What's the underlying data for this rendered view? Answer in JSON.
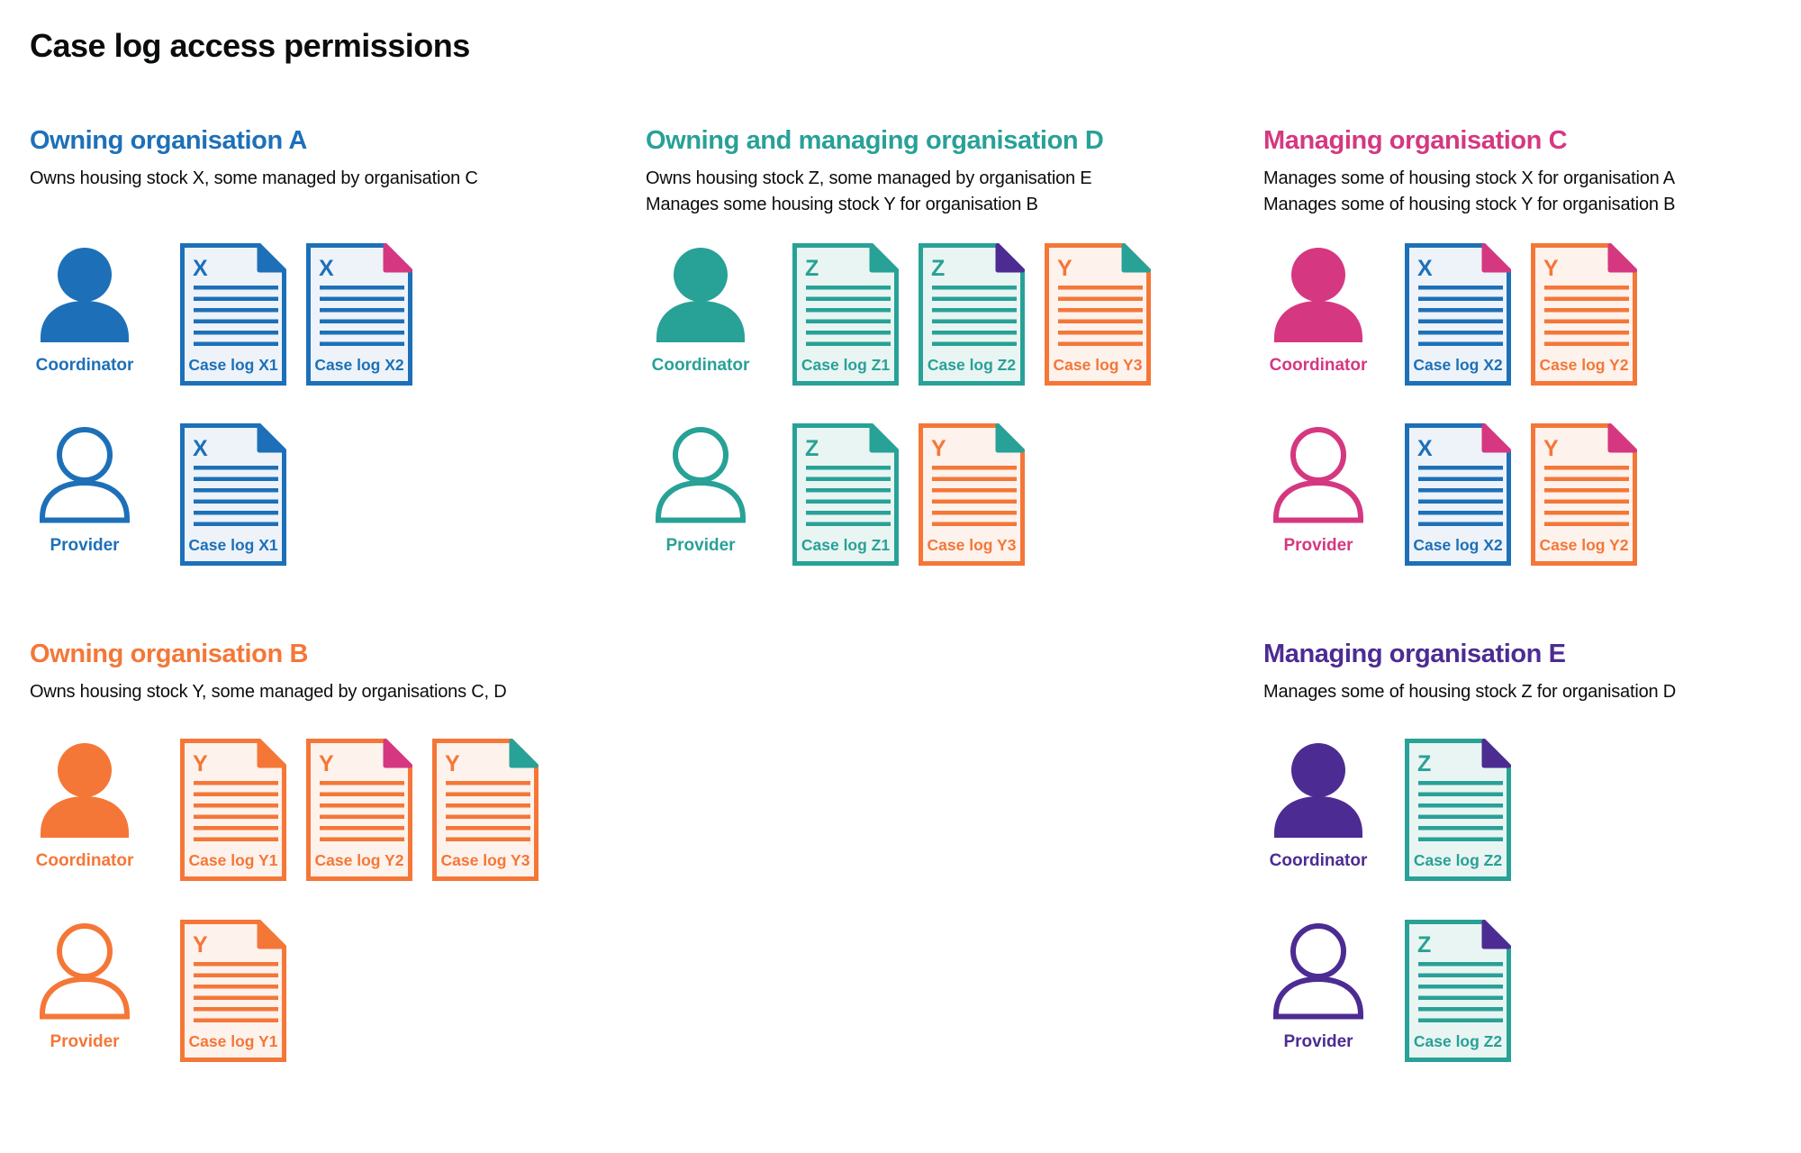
{
  "title": "Case log access permissions",
  "colors": {
    "blue": "#1d70b8",
    "teal": "#28a197",
    "pink": "#d53880",
    "orange": "#f47738",
    "purple": "#4c2c92",
    "text": "#0b0c0c",
    "page_bg": "#ffffff",
    "doc_bg_blue": "#edf3f9",
    "doc_bg_teal": "#e9f5f2",
    "doc_bg_orange": "#fdf2ec"
  },
  "stock_colors": {
    "X": "blue",
    "Y": "orange",
    "Z": "teal"
  },
  "doc_bg_by_stock": {
    "X": "doc_bg_blue",
    "Y": "doc_bg_orange",
    "Z": "doc_bg_teal"
  },
  "sections": [
    {
      "id": "org-a",
      "title": "Owning organisation A",
      "color_key": "blue",
      "description_lines": [
        "Owns housing stock X, some managed by organisation C"
      ],
      "rows": [
        {
          "role": "Coordinator",
          "person": "filled",
          "docs": [
            {
              "stock": "X",
              "label": "Case log X1",
              "fold": "blue"
            },
            {
              "stock": "X",
              "label": "Case log X2",
              "fold": "pink"
            }
          ]
        },
        {
          "role": "Provider",
          "person": "outline",
          "docs": [
            {
              "stock": "X",
              "label": "Case log X1",
              "fold": "blue"
            }
          ]
        }
      ]
    },
    {
      "id": "org-d",
      "title": "Owning and managing organisation D",
      "color_key": "teal",
      "description_lines": [
        "Owns housing stock Z, some managed by organisation E",
        "Manages some housing stock Y for organisation B"
      ],
      "rows": [
        {
          "role": "Coordinator",
          "person": "filled",
          "docs": [
            {
              "stock": "Z",
              "label": "Case log Z1",
              "fold": "teal"
            },
            {
              "stock": "Z",
              "label": "Case log Z2",
              "fold": "purple"
            },
            {
              "stock": "Y",
              "label": "Case log Y3",
              "fold": "teal"
            }
          ]
        },
        {
          "role": "Provider",
          "person": "outline",
          "docs": [
            {
              "stock": "Z",
              "label": "Case log Z1",
              "fold": "teal"
            },
            {
              "stock": "Y",
              "label": "Case log Y3",
              "fold": "teal"
            }
          ]
        }
      ]
    },
    {
      "id": "org-c",
      "title": "Managing organisation C",
      "color_key": "pink",
      "description_lines": [
        "Manages some of housing stock X for organisation A",
        "Manages some of housing stock Y for organisation B"
      ],
      "rows": [
        {
          "role": "Coordinator",
          "person": "filled",
          "docs": [
            {
              "stock": "X",
              "label": "Case log X2",
              "fold": "pink"
            },
            {
              "stock": "Y",
              "label": "Case log Y2",
              "fold": "pink"
            }
          ]
        },
        {
          "role": "Provider",
          "person": "outline",
          "docs": [
            {
              "stock": "X",
              "label": "Case log X2",
              "fold": "pink"
            },
            {
              "stock": "Y",
              "label": "Case log Y2",
              "fold": "pink"
            }
          ]
        }
      ]
    },
    {
      "id": "org-b",
      "title": "Owning organisation B",
      "color_key": "orange",
      "description_lines": [
        "Owns housing stock Y, some managed by organisations C, D"
      ],
      "rows": [
        {
          "role": "Coordinator",
          "person": "filled",
          "docs": [
            {
              "stock": "Y",
              "label": "Case log Y1",
              "fold": "orange"
            },
            {
              "stock": "Y",
              "label": "Case log Y2",
              "fold": "pink"
            },
            {
              "stock": "Y",
              "label": "Case log Y3",
              "fold": "teal"
            }
          ]
        },
        {
          "role": "Provider",
          "person": "outline",
          "docs": [
            {
              "stock": "Y",
              "label": "Case log Y1",
              "fold": "orange"
            }
          ]
        }
      ]
    },
    {
      "id": "org-e",
      "title": "Managing organisation E",
      "color_key": "purple",
      "description_lines": [
        "Manages some of housing stock Z for organisation D"
      ],
      "rows": [
        {
          "role": "Coordinator",
          "person": "filled",
          "docs": [
            {
              "stock": "Z",
              "label": "Case log Z2",
              "fold": "purple"
            }
          ]
        },
        {
          "role": "Provider",
          "person": "outline",
          "docs": [
            {
              "stock": "Z",
              "label": "Case log Z2",
              "fold": "purple"
            }
          ]
        }
      ]
    }
  ]
}
